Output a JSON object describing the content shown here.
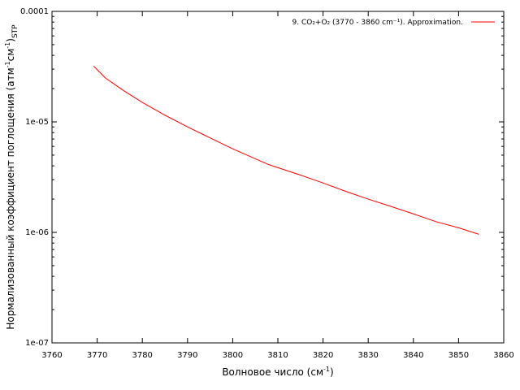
{
  "chart_data": {
    "type": "line",
    "xlabel": "Волновое число (см",
    "xlabel_sup": "-1",
    "xlabel_end": ")",
    "ylabel_main": "Нормализованный коэффициент поглощения (атм",
    "ylabel_sup1": "-1",
    "ylabel_mid": "см",
    "ylabel_sup2": "-1",
    "ylabel_end": ")",
    "ylabel_sub": "STP",
    "xlim": [
      3760,
      3860
    ],
    "ylim": [
      1e-07,
      0.0001
    ],
    "y_scale": "log",
    "x_ticks": [
      "3760",
      "3770",
      "3780",
      "3790",
      "3800",
      "3810",
      "3820",
      "3830",
      "3840",
      "3850",
      "3860"
    ],
    "y_ticks": [
      "1e-07",
      "1e-06",
      "1e-05",
      "0.0001"
    ],
    "grid": false,
    "legend_position": "top-right",
    "series": [
      {
        "name": "9. CO₂+O₂ (3770 - 3860 cm⁻¹). Approximation.",
        "color": "#ff0000",
        "x": [
          3769.2,
          3771.8,
          3776,
          3780,
          3785,
          3790,
          3794,
          3800,
          3808,
          3815,
          3820,
          3825,
          3830,
          3835,
          3840,
          3845,
          3850,
          3854.5
        ],
        "y": [
          3.2e-05,
          2.5e-05,
          1.9e-05,
          1.5e-05,
          1.15e-05,
          9e-06,
          7.5e-06,
          5.7e-06,
          4.1e-06,
          3.3e-06,
          2.8e-06,
          2.35e-06,
          2e-06,
          1.72e-06,
          1.47e-06,
          1.25e-06,
          1.1e-06,
          9.6e-07
        ]
      }
    ]
  }
}
